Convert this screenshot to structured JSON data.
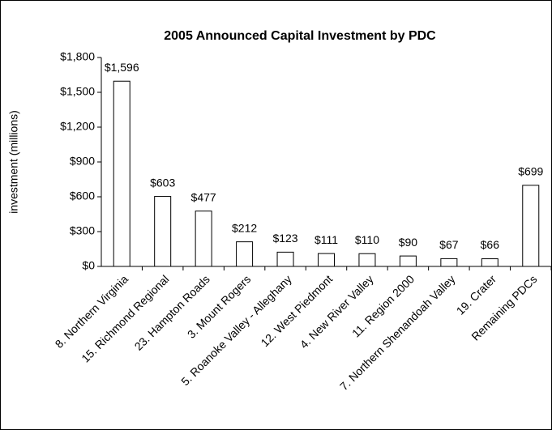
{
  "chart_data": {
    "type": "bar",
    "title": "2005 Announced Capital Investment by PDC",
    "y_label": "investment (millions)",
    "categories": [
      "8. Northern Virginia",
      "15. Richmond Regional",
      "23. Hampton Roads",
      "3. Mount Rogers",
      "5. Roanoke Valley - Alleghany",
      "12. West Piedmont",
      "4. New River Valley",
      "11. Region 2000",
      "7. Northern Shenandoah Valley",
      "19. Crater",
      "Remaining PDCs"
    ],
    "values": [
      1596,
      603,
      477,
      212,
      123,
      111,
      110,
      90,
      67,
      66,
      699
    ],
    "value_labels": [
      "$1,596",
      "$603",
      "$477",
      "$212",
      "$123",
      "$111",
      "$110",
      "$90",
      "$67",
      "$66",
      "$699"
    ],
    "color": "#ffffff",
    "ylim": [
      0,
      1800
    ],
    "yticks": [
      {
        "value": 0,
        "label": "$0"
      },
      {
        "value": 300,
        "label": "$300"
      },
      {
        "value": 600,
        "label": "$600"
      },
      {
        "value": 900,
        "label": "$900"
      },
      {
        "value": 1200,
        "label": "$1,200"
      },
      {
        "value": 1500,
        "label": "$1,500"
      },
      {
        "value": 1800,
        "label": "$1,800"
      }
    ],
    "grid": false
  }
}
